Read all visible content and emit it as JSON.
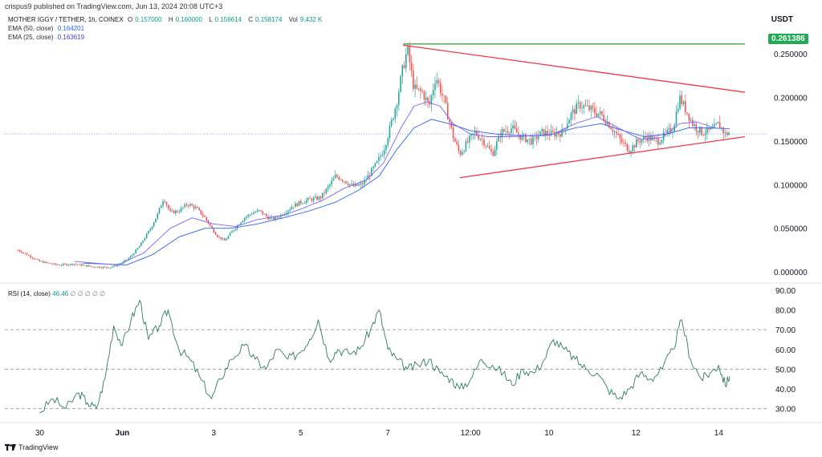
{
  "header": {
    "publisher": "crispus9 published on TradingView.com, Jun 13, 2024 20:08 UTC+3"
  },
  "legend": {
    "symbol": "MOTHER IGGY / TETHER, 1h, COINEX",
    "o_label": "O",
    "o_val": "0.157000",
    "h_label": "H",
    "h_val": "0.160000",
    "l_label": "L",
    "l_val": "0.156614",
    "c_label": "C",
    "c_val": "0.158174",
    "vol_label": "Vol",
    "vol_val": "9.432 K",
    "ema50_label": "EMA (50, close)",
    "ema50_val": "0.164201",
    "ema25_label": "EMA (25, close)",
    "ema25_val": "0.163619"
  },
  "currency": "USDT",
  "price_tag": "0.261386",
  "rsi_legend": {
    "label": "RSI (14, close)",
    "value": "46.46",
    "placeholders": "∅ ∅ ∅ ∅ ∅"
  },
  "footer": {
    "brand": "TradingView"
  },
  "colors": {
    "up": "#26a69a",
    "down": "#ef5350",
    "ema50": "#2962ff",
    "ema25": "#7b61ff",
    "triangle": "#f23645",
    "resistance": "#43a047",
    "rsi": "#2e7d5b",
    "current_price_line": "#2962ff"
  },
  "chart_data": [
    {
      "type": "candlestick",
      "title": "MOTHER IGGY / TETHER, 1h, COINEX",
      "y_ticks": [
        "0.250000",
        "0.200000",
        "0.150000",
        "0.100000",
        "0.050000",
        "0.000000"
      ],
      "ylim": [
        -0.01,
        0.275
      ],
      "x_ticks": [
        "30",
        "Jun",
        "3",
        "5",
        "7",
        "12:00",
        "10",
        "12",
        "14"
      ],
      "x_tick_days": [
        30,
        31.9,
        34,
        36,
        38,
        39.9,
        41.7,
        43.7,
        45.6
      ],
      "xlim": [
        29.2,
        46.7
      ],
      "price_path": [
        [
          29.5,
          0.025
        ],
        [
          29.7,
          0.02
        ],
        [
          30.0,
          0.012
        ],
        [
          30.4,
          0.008
        ],
        [
          30.8,
          0.009
        ],
        [
          31.2,
          0.006
        ],
        [
          31.6,
          0.005
        ],
        [
          31.9,
          0.01
        ],
        [
          32.1,
          0.018
        ],
        [
          32.3,
          0.03
        ],
        [
          32.55,
          0.05
        ],
        [
          32.7,
          0.065
        ],
        [
          32.85,
          0.085
        ],
        [
          33.0,
          0.068
        ],
        [
          33.2,
          0.07
        ],
        [
          33.4,
          0.078
        ],
        [
          33.6,
          0.073
        ],
        [
          33.8,
          0.062
        ],
        [
          33.95,
          0.05
        ],
        [
          34.1,
          0.04
        ],
        [
          34.25,
          0.036
        ],
        [
          34.45,
          0.048
        ],
        [
          34.7,
          0.062
        ],
        [
          34.9,
          0.068
        ],
        [
          35.05,
          0.07
        ],
        [
          35.25,
          0.062
        ],
        [
          35.4,
          0.061
        ],
        [
          35.6,
          0.067
        ],
        [
          35.8,
          0.075
        ],
        [
          36.0,
          0.08
        ],
        [
          36.2,
          0.083
        ],
        [
          36.45,
          0.085
        ],
        [
          36.6,
          0.095
        ],
        [
          36.8,
          0.11
        ],
        [
          37.0,
          0.105
        ],
        [
          37.2,
          0.098
        ],
        [
          37.4,
          0.1
        ],
        [
          37.55,
          0.11
        ],
        [
          37.75,
          0.125
        ],
        [
          37.9,
          0.14
        ],
        [
          38.05,
          0.165
        ],
        [
          38.2,
          0.195
        ],
        [
          38.35,
          0.235
        ],
        [
          38.45,
          0.255
        ],
        [
          38.6,
          0.21
        ],
        [
          38.8,
          0.205
        ],
        [
          38.95,
          0.19
        ],
        [
          39.1,
          0.225
        ],
        [
          39.3,
          0.195
        ],
        [
          39.5,
          0.155
        ],
        [
          39.65,
          0.135
        ],
        [
          39.85,
          0.15
        ],
        [
          40.0,
          0.16
        ],
        [
          40.2,
          0.15
        ],
        [
          40.4,
          0.135
        ],
        [
          40.6,
          0.16
        ],
        [
          40.85,
          0.165
        ],
        [
          41.05,
          0.155
        ],
        [
          41.3,
          0.15
        ],
        [
          41.55,
          0.16
        ],
        [
          41.75,
          0.158
        ],
        [
          42.0,
          0.16
        ],
        [
          42.2,
          0.18
        ],
        [
          42.4,
          0.192
        ],
        [
          42.7,
          0.185
        ],
        [
          42.9,
          0.18
        ],
        [
          43.15,
          0.165
        ],
        [
          43.35,
          0.15
        ],
        [
          43.55,
          0.14
        ],
        [
          43.75,
          0.15
        ],
        [
          43.95,
          0.155
        ],
        [
          44.2,
          0.15
        ],
        [
          44.4,
          0.158
        ],
        [
          44.55,
          0.165
        ],
        [
          44.7,
          0.2
        ],
        [
          44.85,
          0.185
        ],
        [
          45.0,
          0.17
        ],
        [
          45.2,
          0.16
        ],
        [
          45.45,
          0.162
        ],
        [
          45.6,
          0.17
        ],
        [
          45.75,
          0.158
        ],
        [
          45.85,
          0.16
        ]
      ],
      "ema25_path": [
        [
          30.8,
          0.012
        ],
        [
          31.8,
          0.008
        ],
        [
          32.4,
          0.022
        ],
        [
          33.0,
          0.05
        ],
        [
          33.5,
          0.062
        ],
        [
          34.0,
          0.055
        ],
        [
          34.5,
          0.052
        ],
        [
          35.0,
          0.06
        ],
        [
          35.6,
          0.065
        ],
        [
          36.0,
          0.072
        ],
        [
          36.5,
          0.082
        ],
        [
          37.0,
          0.096
        ],
        [
          37.5,
          0.105
        ],
        [
          37.9,
          0.125
        ],
        [
          38.3,
          0.165
        ],
        [
          38.6,
          0.19
        ],
        [
          38.9,
          0.195
        ],
        [
          39.2,
          0.19
        ],
        [
          39.5,
          0.17
        ],
        [
          39.9,
          0.158
        ],
        [
          40.3,
          0.155
        ],
        [
          40.8,
          0.155
        ],
        [
          41.3,
          0.156
        ],
        [
          41.8,
          0.158
        ],
        [
          42.3,
          0.17
        ],
        [
          42.8,
          0.178
        ],
        [
          43.3,
          0.165
        ],
        [
          43.8,
          0.152
        ],
        [
          44.3,
          0.154
        ],
        [
          44.7,
          0.17
        ],
        [
          45.1,
          0.172
        ],
        [
          45.5,
          0.165
        ],
        [
          45.85,
          0.164
        ]
      ],
      "ema50_path": [
        [
          31.0,
          0.01
        ],
        [
          32.0,
          0.008
        ],
        [
          32.6,
          0.02
        ],
        [
          33.2,
          0.04
        ],
        [
          33.8,
          0.05
        ],
        [
          34.4,
          0.05
        ],
        [
          35.0,
          0.055
        ],
        [
          35.6,
          0.062
        ],
        [
          36.2,
          0.07
        ],
        [
          36.8,
          0.08
        ],
        [
          37.3,
          0.093
        ],
        [
          37.8,
          0.11
        ],
        [
          38.2,
          0.14
        ],
        [
          38.6,
          0.165
        ],
        [
          39.0,
          0.175
        ],
        [
          39.4,
          0.17
        ],
        [
          39.9,
          0.162
        ],
        [
          40.5,
          0.158
        ],
        [
          41.1,
          0.156
        ],
        [
          41.7,
          0.157
        ],
        [
          42.3,
          0.165
        ],
        [
          42.9,
          0.17
        ],
        [
          43.4,
          0.162
        ],
        [
          43.9,
          0.155
        ],
        [
          44.4,
          0.158
        ],
        [
          44.9,
          0.165
        ],
        [
          45.4,
          0.165
        ],
        [
          45.85,
          0.164
        ]
      ],
      "annotations": {
        "resistance_line": {
          "x": [
            38.35,
            46.2
          ],
          "y": [
            0.261386,
            0.261386
          ]
        },
        "triangle_upper": {
          "x": [
            38.35,
            46.2
          ],
          "y": [
            0.26,
            0.206
          ]
        },
        "triangle_lower": {
          "x": [
            39.65,
            46.2
          ],
          "y": [
            0.108,
            0.155
          ]
        },
        "current_price": 0.158174
      }
    },
    {
      "type": "line",
      "title": "RSI (14, close)",
      "y_ticks": [
        "90.00",
        "80.00",
        "70.00",
        "60.00",
        "50.00",
        "40.00",
        "30.00"
      ],
      "ylim": [
        25,
        92
      ],
      "bands": [
        70,
        50,
        30
      ],
      "rsi_path": [
        [
          30.0,
          28
        ],
        [
          30.3,
          35
        ],
        [
          30.6,
          30
        ],
        [
          30.9,
          38
        ],
        [
          31.1,
          33
        ],
        [
          31.3,
          30
        ],
        [
          31.5,
          45
        ],
        [
          31.7,
          72
        ],
        [
          31.9,
          62
        ],
        [
          32.1,
          75
        ],
        [
          32.3,
          85
        ],
        [
          32.5,
          65
        ],
        [
          32.75,
          72
        ],
        [
          32.95,
          80
        ],
        [
          33.2,
          60
        ],
        [
          33.45,
          55
        ],
        [
          33.7,
          45
        ],
        [
          33.95,
          35
        ],
        [
          34.15,
          45
        ],
        [
          34.4,
          55
        ],
        [
          34.7,
          62
        ],
        [
          34.95,
          55
        ],
        [
          35.2,
          50
        ],
        [
          35.45,
          60
        ],
        [
          35.7,
          55
        ],
        [
          35.95,
          58
        ],
        [
          36.2,
          65
        ],
        [
          36.4,
          75
        ],
        [
          36.65,
          55
        ],
        [
          36.85,
          60
        ],
        [
          37.1,
          58
        ],
        [
          37.35,
          60
        ],
        [
          37.6,
          70
        ],
        [
          37.8,
          80
        ],
        [
          38.0,
          60
        ],
        [
          38.2,
          55
        ],
        [
          38.45,
          50
        ],
        [
          38.7,
          52
        ],
        [
          38.95,
          55
        ],
        [
          39.2,
          48
        ],
        [
          39.45,
          45
        ],
        [
          39.65,
          40
        ],
        [
          39.9,
          45
        ],
        [
          40.15,
          55
        ],
        [
          40.4,
          52
        ],
        [
          40.65,
          48
        ],
        [
          40.85,
          42
        ],
        [
          41.1,
          50
        ],
        [
          41.35,
          48
        ],
        [
          41.6,
          55
        ],
        [
          41.8,
          65
        ],
        [
          42.05,
          60
        ],
        [
          42.3,
          55
        ],
        [
          42.55,
          50
        ],
        [
          42.8,
          48
        ],
        [
          43.05,
          40
        ],
        [
          43.3,
          35
        ],
        [
          43.55,
          40
        ],
        [
          43.8,
          48
        ],
        [
          44.05,
          45
        ],
        [
          44.3,
          50
        ],
        [
          44.55,
          60
        ],
        [
          44.75,
          75
        ],
        [
          44.95,
          55
        ],
        [
          45.2,
          45
        ],
        [
          45.4,
          48
        ],
        [
          45.6,
          52
        ],
        [
          45.75,
          42
        ],
        [
          45.85,
          46.46
        ]
      ]
    }
  ]
}
